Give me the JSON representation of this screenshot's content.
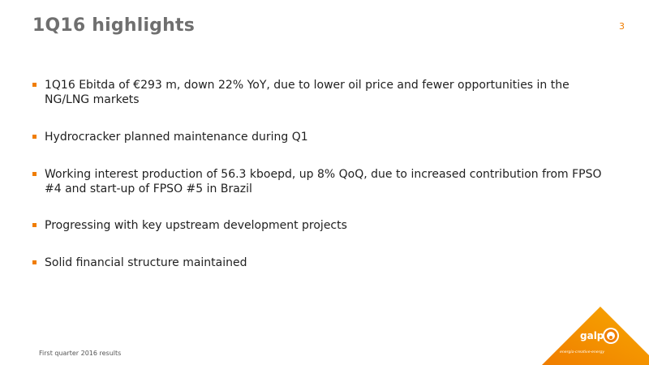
{
  "slide": {
    "title": "1Q16 highlights",
    "page_number": "3",
    "footer": "First quarter 2016 results"
  },
  "bullets": [
    "1Q16 Ebitda of €293 m, down 22% YoY, due to lower oil price and fewer opportunities in the NG/LNG markets",
    "Hydrocracker planned maintenance during Q1",
    "Working interest production of 56.3 kboepd, up 8% QoQ, due to increased contribution from FPSO #4 and start-up of FPSO #5 in Brazil",
    "Progressing with key upstream development projects",
    "Solid financial structure maintained"
  ],
  "logo": {
    "brand": "galp",
    "tagline": "energia·creative·energy",
    "colors": {
      "accent": "#f07d00",
      "light": "#f7a800"
    }
  }
}
